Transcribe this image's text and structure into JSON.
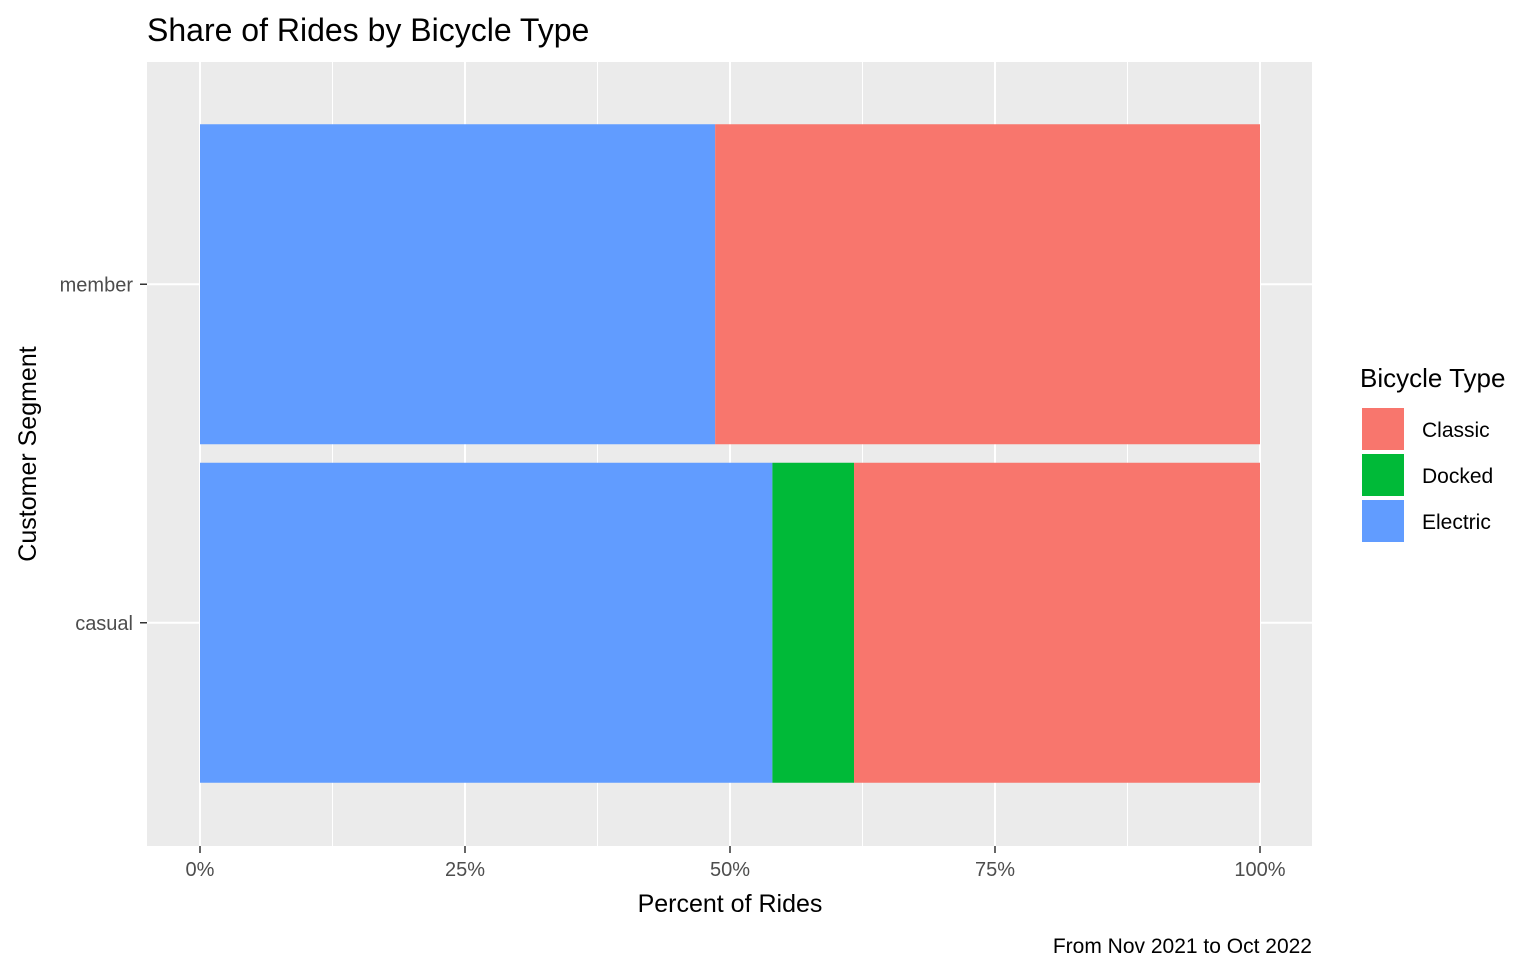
{
  "chart_data": {
    "type": "bar",
    "orientation": "horizontal",
    "stacked": true,
    "title": "Share of Rides by Bicycle Type",
    "xlabel": "Percent of Rides",
    "ylabel": "Customer Segment",
    "caption": "From Nov 2021 to Oct 2022",
    "categories": [
      "casual",
      "member"
    ],
    "xlim": [
      0,
      1
    ],
    "x_ticks": [
      {
        "value": 0,
        "label": "0%"
      },
      {
        "value": 0.25,
        "label": "25%"
      },
      {
        "value": 0.5,
        "label": "50%"
      },
      {
        "value": 0.75,
        "label": "75%"
      },
      {
        "value": 1,
        "label": "100%"
      }
    ],
    "grid": true,
    "legend": {
      "title": "Bicycle Type",
      "position": "right"
    },
    "series": [
      {
        "name": "Classic",
        "color": "#F8766D",
        "values": [
          0.383,
          0.514
        ]
      },
      {
        "name": "Docked",
        "color": "#00BA38",
        "values": [
          0.077,
          0.0
        ]
      },
      {
        "name": "Electric",
        "color": "#619CFF",
        "values": [
          0.54,
          0.486
        ]
      }
    ]
  }
}
